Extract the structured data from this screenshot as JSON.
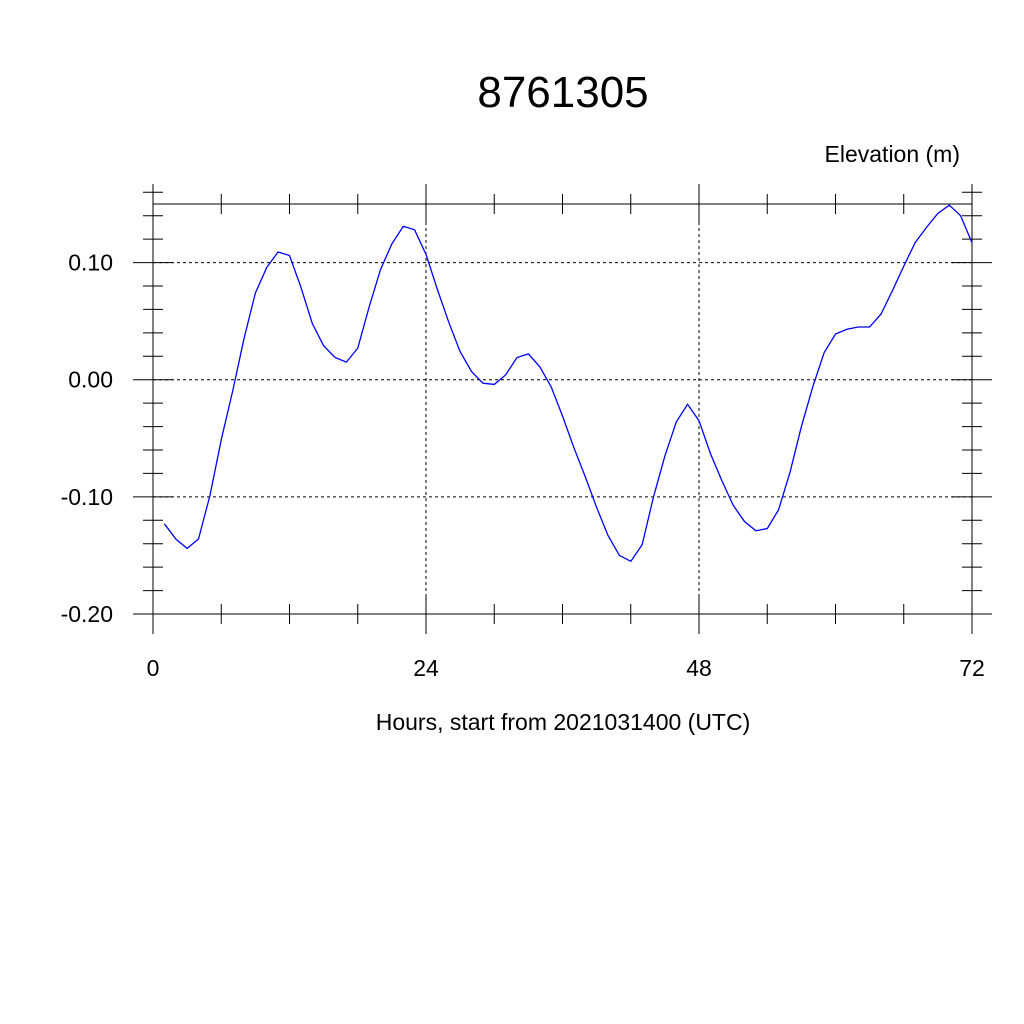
{
  "chart_data": {
    "type": "line",
    "title": "8761305",
    "ylabel": "Elevation (m)",
    "xlabel": "Hours, start from 2021031400 (UTC)",
    "xlim": [
      0,
      72
    ],
    "ylim": [
      -0.2,
      0.15
    ],
    "x_major_ticks": [
      0,
      24,
      48,
      72
    ],
    "x_tick_labels": [
      "0",
      "24",
      "48",
      "72"
    ],
    "y_major_ticks": [
      -0.2,
      -0.1,
      0.0,
      0.1
    ],
    "y_tick_labels": [
      "-0.20",
      "-0.10",
      "0.00",
      "0.10"
    ],
    "grid": true,
    "series": [
      {
        "color": "#0000ff",
        "x": [
          1,
          2,
          3,
          4,
          5,
          6,
          7,
          8,
          9,
          10,
          11,
          12,
          13,
          14,
          15,
          16,
          17,
          18,
          19,
          20,
          21,
          22,
          23,
          24,
          25,
          26,
          27,
          28,
          29,
          30,
          31,
          32,
          33,
          34,
          35,
          36,
          37,
          38,
          39,
          40,
          41,
          42,
          43,
          44,
          45,
          46,
          47,
          48,
          49,
          50,
          51,
          52,
          53,
          54,
          55,
          56,
          57,
          58,
          59,
          60,
          61,
          62,
          63,
          64,
          65,
          66,
          67,
          68,
          69,
          70,
          71,
          72
        ],
        "y": [
          -0.123,
          -0.136,
          -0.144,
          -0.136,
          -0.099,
          -0.051,
          -0.01,
          0.035,
          0.074,
          0.096,
          0.109,
          0.106,
          0.079,
          0.048,
          0.029,
          0.019,
          0.015,
          0.027,
          0.062,
          0.094,
          0.116,
          0.131,
          0.128,
          0.107,
          0.077,
          0.049,
          0.024,
          0.007,
          -0.003,
          -0.004,
          0.004,
          0.019,
          0.022,
          0.011,
          -0.006,
          -0.031,
          -0.058,
          -0.083,
          -0.109,
          -0.133,
          -0.15,
          -0.155,
          -0.141,
          -0.1,
          -0.065,
          -0.036,
          -0.021,
          -0.035,
          -0.063,
          -0.086,
          -0.107,
          -0.121,
          -0.129,
          -0.127,
          -0.111,
          -0.079,
          -0.04,
          -0.006,
          0.023,
          0.039,
          0.043,
          0.045,
          0.045,
          0.056,
          0.076,
          0.097,
          0.117,
          0.13,
          0.142,
          0.149,
          0.14,
          0.117
        ]
      }
    ]
  }
}
